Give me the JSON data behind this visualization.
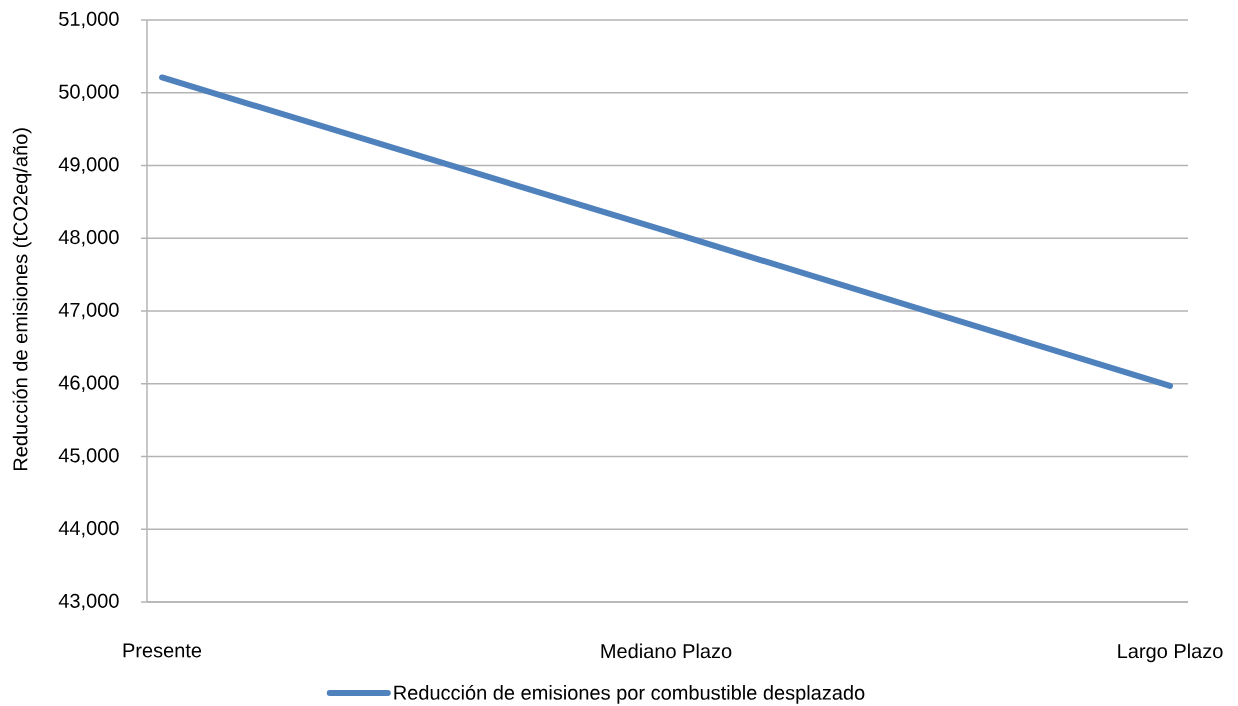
{
  "chart_data": {
    "type": "line",
    "ylabel": "Reducción de emisiones (tCO2eq/año)",
    "categories": [
      "Presente",
      "Mediano Plazo",
      "Largo Plazo"
    ],
    "series": [
      {
        "name": "Reducción de emisiones por combustible desplazado",
        "color": "#4f81bd",
        "values": [
          50210,
          48100,
          45970
        ]
      }
    ],
    "ylim": [
      43000,
      51000
    ],
    "yticks": [
      {
        "value": 43000,
        "label": "43,000"
      },
      {
        "value": 44000,
        "label": "44,000"
      },
      {
        "value": 45000,
        "label": "45,000"
      },
      {
        "value": 46000,
        "label": "46,000"
      },
      {
        "value": 47000,
        "label": "47,000"
      },
      {
        "value": 48000,
        "label": "48,000"
      },
      {
        "value": 49000,
        "label": "49,000"
      },
      {
        "value": 50000,
        "label": "50,000"
      },
      {
        "value": 51000,
        "label": "51,000"
      }
    ],
    "grid": "y",
    "legend": "bottom",
    "line_style": "solid"
  }
}
